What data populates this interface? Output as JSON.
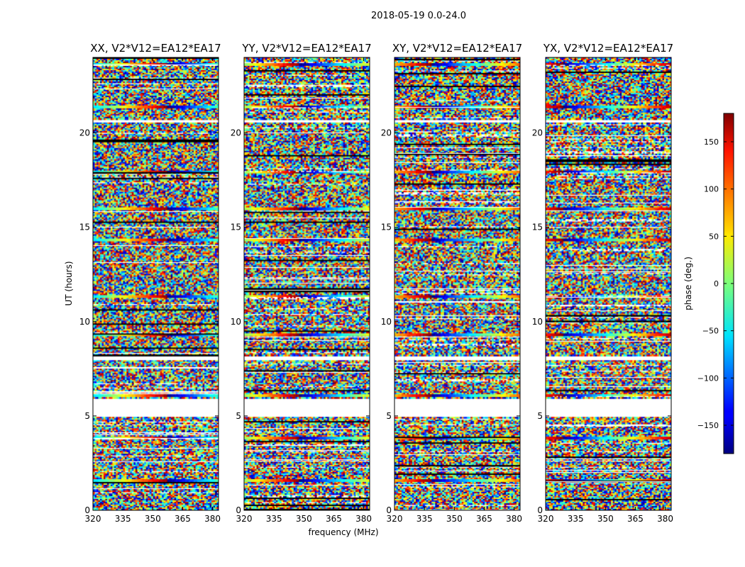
{
  "chart_data": {
    "type": "heatmap",
    "suptitle": "2018-05-19 0.0-24.0",
    "xlabel": "frequency (MHz)",
    "ylabel": "UT (hours)",
    "xlim": [
      320,
      383
    ],
    "ylim": [
      0,
      24
    ],
    "xticks": [
      320,
      335,
      350,
      365,
      380
    ],
    "yticks": [
      0,
      5,
      10,
      15,
      20
    ],
    "panels": [
      {
        "title": "XX, V2*V12=EA12*EA17"
      },
      {
        "title": "YY, V2*V12=EA12*EA17"
      },
      {
        "title": "XY, V2*V12=EA12*EA17"
      },
      {
        "title": "YX, V2*V12=EA12*EA17"
      }
    ],
    "colorbar": {
      "label": "phase (deg.)",
      "range": [
        -180,
        180
      ],
      "ticks": [
        150,
        100,
        50,
        0,
        -50,
        -100,
        -150
      ],
      "tick_labels": [
        "150",
        "100",
        "50",
        "0",
        "−50",
        "−100",
        "−150"
      ],
      "colormap": "jet"
    },
    "flagged_ut_ranges": [
      [
        4.98,
        5.9
      ],
      [
        7.95,
        8.2
      ],
      [
        20.55,
        20.7
      ]
    ],
    "coherent_ut_rows": [
      1.55,
      3.8,
      6.1,
      9.3,
      11.3,
      14.3,
      16.0,
      17.9,
      21.4,
      23.6
    ]
  }
}
